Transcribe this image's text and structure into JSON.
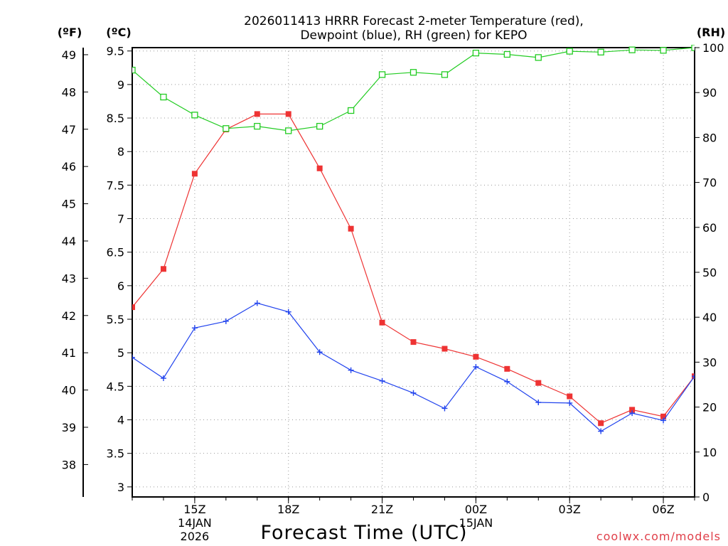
{
  "chart_data": {
    "type": "line",
    "title_line1": "2026011413 HRRR Forecast 2-meter Temperature (red),",
    "title_line2": "Dewpoint (blue), RH (green) for KEPO",
    "xlabel": "Forecast Time (UTC)",
    "credit": "coolwx.com/models",
    "units": {
      "fahrenheit": "(ºF)",
      "celsius": "(ºC)",
      "rh": "(RH)"
    },
    "x_range": [
      13,
      31
    ],
    "y_left_celsius_range": [
      2.85,
      9.55
    ],
    "y_right_rh_range": [
      0,
      100
    ],
    "x_ticks": [
      {
        "hour": 15,
        "label": "15Z"
      },
      {
        "hour": 18,
        "label": "18Z"
      },
      {
        "hour": 21,
        "label": "21Z"
      },
      {
        "hour": 24,
        "label": "00Z"
      },
      {
        "hour": 27,
        "label": "03Z"
      },
      {
        "hour": 30,
        "label": "06Z"
      }
    ],
    "date_labels": [
      {
        "hour": 15,
        "line1": "14JAN",
        "line2": "2026"
      },
      {
        "hour": 24,
        "line1": "15JAN",
        "line2": ""
      }
    ],
    "y_celsius_ticks": [
      {
        "value": 3,
        "label": "3"
      },
      {
        "value": 3.5,
        "label": "3.5"
      },
      {
        "value": 4,
        "label": "4"
      },
      {
        "value": 4.5,
        "label": "4.5"
      },
      {
        "value": 5,
        "label": "5"
      },
      {
        "value": 5.5,
        "label": "5.5"
      },
      {
        "value": 6,
        "label": "6"
      },
      {
        "value": 6.5,
        "label": "6.5"
      },
      {
        "value": 7,
        "label": "7"
      },
      {
        "value": 7.5,
        "label": "7.5"
      },
      {
        "value": 8,
        "label": "8"
      },
      {
        "value": 8.5,
        "label": "8.5"
      },
      {
        "value": 9,
        "label": "9"
      },
      {
        "value": 9.5,
        "label": "9.5"
      }
    ],
    "y_fahrenheit_ticks": [
      {
        "value": 38,
        "label": "38"
      },
      {
        "value": 39,
        "label": "39"
      },
      {
        "value": 40,
        "label": "40"
      },
      {
        "value": 41,
        "label": "41"
      },
      {
        "value": 42,
        "label": "42"
      },
      {
        "value": 43,
        "label": "43"
      },
      {
        "value": 44,
        "label": "44"
      },
      {
        "value": 45,
        "label": "45"
      },
      {
        "value": 46,
        "label": "46"
      },
      {
        "value": 47,
        "label": "47"
      },
      {
        "value": 48,
        "label": "48"
      },
      {
        "value": 49,
        "label": "49"
      }
    ],
    "y_rh_ticks": [
      {
        "value": 0,
        "label": "0"
      },
      {
        "value": 10,
        "label": "10"
      },
      {
        "value": 20,
        "label": "20"
      },
      {
        "value": 30,
        "label": "30"
      },
      {
        "value": 40,
        "label": "40"
      },
      {
        "value": 50,
        "label": "50"
      },
      {
        "value": 60,
        "label": "60"
      },
      {
        "value": 70,
        "label": "70"
      },
      {
        "value": 80,
        "label": "80"
      },
      {
        "value": 90,
        "label": "90"
      },
      {
        "value": 100,
        "label": "100"
      }
    ],
    "series": [
      {
        "name": "Temperature",
        "axis": "celsius",
        "color": "#ee3333",
        "marker": "filled-square",
        "x": [
          13,
          14,
          15,
          16,
          17,
          18,
          19,
          20,
          21,
          22,
          23,
          24,
          25,
          26,
          27,
          28,
          29,
          30,
          31
        ],
        "values": [
          5.68,
          6.25,
          7.67,
          8.33,
          8.56,
          8.56,
          7.75,
          6.85,
          5.45,
          5.16,
          5.06,
          4.94,
          4.76,
          4.55,
          4.35,
          3.95,
          4.15,
          4.05,
          4.65
        ]
      },
      {
        "name": "Dewpoint",
        "axis": "celsius",
        "color": "#2244ee",
        "marker": "plus",
        "x": [
          13,
          14,
          15,
          16,
          17,
          18,
          19,
          20,
          21,
          22,
          23,
          24,
          25,
          26,
          27,
          28,
          29,
          30,
          31
        ],
        "values": [
          4.93,
          4.62,
          5.37,
          5.47,
          5.74,
          5.61,
          5.01,
          4.74,
          4.58,
          4.4,
          4.17,
          4.79,
          4.57,
          4.26,
          4.25,
          3.83,
          4.1,
          3.99,
          4.65
        ]
      },
      {
        "name": "RH",
        "axis": "rh",
        "color": "#22cc22",
        "marker": "open-square",
        "x": [
          13,
          14,
          15,
          16,
          17,
          18,
          19,
          20,
          21,
          22,
          23,
          24,
          25,
          26,
          27,
          28,
          29,
          30,
          31
        ],
        "values": [
          95,
          89,
          85,
          82,
          82.5,
          81.5,
          82.5,
          86,
          94,
          94.5,
          94,
          98.8,
          98.5,
          97.8,
          99.2,
          99,
          99.5,
          99.4,
          100
        ]
      }
    ]
  }
}
